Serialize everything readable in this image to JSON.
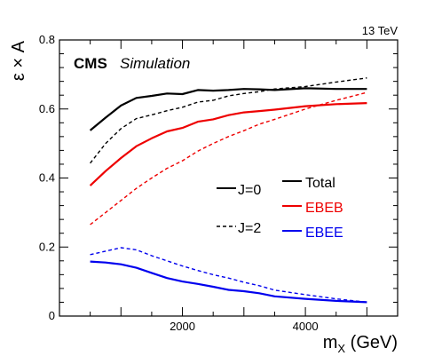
{
  "chart_data": {
    "type": "line",
    "top_right_label": "13 TeV",
    "experiment_label": "CMS",
    "experiment_sublabel": "Simulation",
    "ylabel": "ε × A",
    "xlabel_main": "m",
    "xlabel_sub": "X",
    "xlabel_unit": "(GeV)",
    "xlim": [
      0,
      5500
    ],
    "ylim": [
      0,
      0.8
    ],
    "xticks": [
      2000,
      4000
    ],
    "yticks": [
      0,
      0.2,
      0.4,
      0.6,
      0.8
    ],
    "ytick_labels": [
      "0",
      "0.2",
      "0.4",
      "0.6",
      "0.8"
    ],
    "xtick_labels": [
      "2000",
      "4000"
    ],
    "legend": {
      "style_entries": [
        {
          "label": "J=0",
          "dash": "solid"
        },
        {
          "label": "J=2",
          "dash": "dashed"
        }
      ],
      "color_entries": [
        {
          "label": "Total",
          "color": "#000000"
        },
        {
          "label": "EBEB",
          "color": "#ee0000"
        },
        {
          "label": "EBEE",
          "color": "#0000ee"
        }
      ]
    },
    "series": [
      {
        "category": "Total",
        "spin": "J=0",
        "color": "#000000",
        "dash": "solid",
        "x": [
          500,
          750,
          1000,
          1250,
          1500,
          1750,
          2000,
          2250,
          2500,
          2750,
          3000,
          3250,
          3500,
          4000,
          4500,
          5000
        ],
        "y": [
          0.538,
          0.575,
          0.61,
          0.632,
          0.638,
          0.645,
          0.643,
          0.655,
          0.653,
          0.655,
          0.658,
          0.657,
          0.655,
          0.66,
          0.658,
          0.658
        ]
      },
      {
        "category": "Total",
        "spin": "J=2",
        "color": "#000000",
        "dash": "dashed",
        "x": [
          500,
          750,
          1000,
          1250,
          1500,
          1750,
          2000,
          2250,
          2500,
          2750,
          3000,
          3250,
          3500,
          4000,
          4500,
          5000
        ],
        "y": [
          0.443,
          0.5,
          0.543,
          0.572,
          0.583,
          0.595,
          0.605,
          0.62,
          0.625,
          0.638,
          0.645,
          0.65,
          0.658,
          0.665,
          0.678,
          0.69
        ]
      },
      {
        "category": "EBEB",
        "spin": "J=0",
        "color": "#ee0000",
        "dash": "solid",
        "x": [
          500,
          750,
          1000,
          1250,
          1500,
          1750,
          2000,
          2250,
          2500,
          2750,
          3000,
          3250,
          3500,
          4000,
          4500,
          5000
        ],
        "y": [
          0.378,
          0.42,
          0.458,
          0.492,
          0.515,
          0.535,
          0.545,
          0.563,
          0.57,
          0.582,
          0.59,
          0.594,
          0.598,
          0.608,
          0.614,
          0.617
        ]
      },
      {
        "category": "EBEB",
        "spin": "J=2",
        "color": "#ee0000",
        "dash": "dashed",
        "x": [
          500,
          750,
          1000,
          1250,
          1500,
          1750,
          2000,
          2250,
          2500,
          2750,
          3000,
          3250,
          3500,
          4000,
          4500,
          5000
        ],
        "y": [
          0.265,
          0.3,
          0.335,
          0.37,
          0.4,
          0.428,
          0.45,
          0.478,
          0.5,
          0.52,
          0.537,
          0.556,
          0.57,
          0.6,
          0.625,
          0.648
        ]
      },
      {
        "category": "EBEE",
        "spin": "J=0",
        "color": "#0000ee",
        "dash": "solid",
        "x": [
          500,
          750,
          1000,
          1250,
          1500,
          1750,
          2000,
          2250,
          2500,
          2750,
          3000,
          3250,
          3500,
          4000,
          4500,
          5000
        ],
        "y": [
          0.158,
          0.155,
          0.15,
          0.14,
          0.125,
          0.11,
          0.1,
          0.093,
          0.085,
          0.076,
          0.072,
          0.066,
          0.057,
          0.05,
          0.044,
          0.04
        ]
      },
      {
        "category": "EBEE",
        "spin": "J=2",
        "color": "#0000ee",
        "dash": "dashed",
        "x": [
          500,
          750,
          1000,
          1250,
          1500,
          1750,
          2000,
          2250,
          2500,
          2750,
          3000,
          3250,
          3500,
          4000,
          4500,
          5000
        ],
        "y": [
          0.178,
          0.188,
          0.198,
          0.192,
          0.175,
          0.16,
          0.145,
          0.132,
          0.12,
          0.11,
          0.098,
          0.088,
          0.075,
          0.062,
          0.05,
          0.04
        ]
      }
    ]
  }
}
